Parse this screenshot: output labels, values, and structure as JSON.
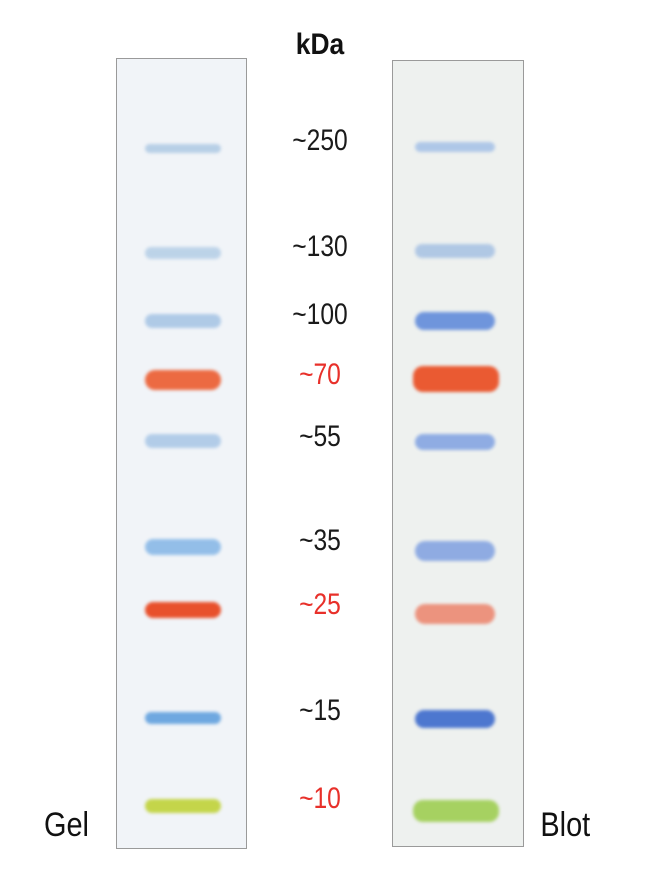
{
  "unit_label": "kDa",
  "lanes": {
    "gel": "Gel",
    "blot": "Blot"
  },
  "markers": [
    {
      "label": "~250",
      "color": "#111111",
      "gel_band": "#a9c6e2",
      "blot_band": "#9fbde6",
      "gel_strength": 0.8,
      "blot_strength": 0.8
    },
    {
      "label": "~130",
      "color": "#111111",
      "gel_band": "#b0cbe5",
      "blot_band": "#a6c1e3",
      "gel_strength": 0.8,
      "blot_strength": 0.85
    },
    {
      "label": "~100",
      "color": "#111111",
      "gel_band": "#a4c3e4",
      "blot_band": "#6f95dc",
      "gel_strength": 0.85,
      "blot_strength": 1
    },
    {
      "label": "~70",
      "color": "#e8302a",
      "gel_band": "#ec6a42",
      "blot_band": "#ea5a32",
      "gel_strength": 1,
      "blot_strength": 1
    },
    {
      "label": "~55",
      "color": "#111111",
      "gel_band": "#a8c6e6",
      "blot_band": "#8aa9e3",
      "gel_strength": 0.85,
      "blot_strength": 0.95
    },
    {
      "label": "~35",
      "color": "#111111",
      "gel_band": "#8fbce8",
      "blot_band": "#8aa8e2",
      "gel_strength": 0.95,
      "blot_strength": 0.95
    },
    {
      "label": "~25",
      "color": "#e8302a",
      "gel_band": "#e8502c",
      "blot_band": "#ec8e78",
      "gel_strength": 1,
      "blot_strength": 0.95
    },
    {
      "label": "~15",
      "color": "#111111",
      "gel_band": "#6fa8e0",
      "blot_band": "#4d77cf",
      "gel_strength": 1,
      "blot_strength": 1
    },
    {
      "label": "~10",
      "color": "#e8302a",
      "gel_band": "#c4d54a",
      "blot_band": "#a6d161",
      "gel_strength": 1,
      "blot_strength": 1
    }
  ]
}
